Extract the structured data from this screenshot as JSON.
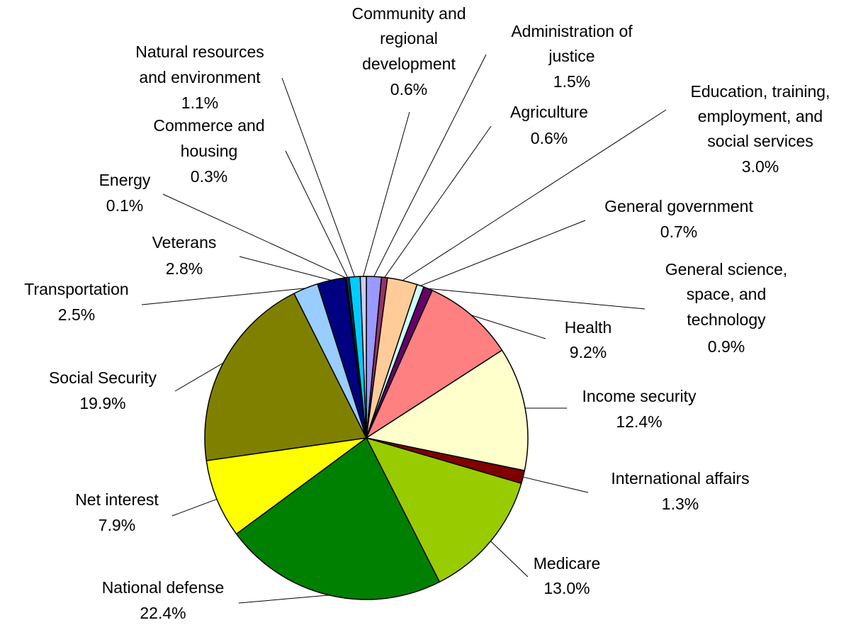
{
  "chart_data": {
    "type": "pie",
    "start_angle_deg": 0,
    "direction": "clockwise",
    "slices": [
      {
        "label": "Administration of justice",
        "value": 1.5,
        "display": "1.5%",
        "color": "#9999ff"
      },
      {
        "label": "Agriculture",
        "value": 0.6,
        "display": "0.6%",
        "color": "#993366"
      },
      {
        "label": "Education, training, employment, and social services",
        "value": 3.0,
        "display": "3.0%",
        "color": "#ffcc99"
      },
      {
        "label": "General government",
        "value": 0.7,
        "display": "0.7%",
        "color": "#ccffff"
      },
      {
        "label": "General science, space, and technology",
        "value": 0.9,
        "display": "0.9%",
        "color": "#660066"
      },
      {
        "label": "Health",
        "value": 9.2,
        "display": "9.2%",
        "color": "#ff8080"
      },
      {
        "label": "Income security",
        "value": 12.4,
        "display": "12.4%",
        "color": "#ffffcc"
      },
      {
        "label": "International affairs",
        "value": 1.3,
        "display": "1.3%",
        "color": "#800000"
      },
      {
        "label": "Medicare",
        "value": 13.0,
        "display": "13.0%",
        "color": "#99cc00"
      },
      {
        "label": "National defense",
        "value": 22.4,
        "display": "22.4%",
        "color": "#008000"
      },
      {
        "label": "Net interest",
        "value": 7.9,
        "display": "7.9%",
        "color": "#ffff00"
      },
      {
        "label": "Social Security",
        "value": 19.9,
        "display": "19.9%",
        "color": "#808000"
      },
      {
        "label": "Transportation",
        "value": 2.5,
        "display": "2.5%",
        "color": "#99ccff"
      },
      {
        "label": "Veterans",
        "value": 2.8,
        "display": "2.8%",
        "color": "#000080"
      },
      {
        "label": "Energy",
        "value": 0.1,
        "display": "0.1%",
        "color": "#333399"
      },
      {
        "label": "Commerce and housing",
        "value": 0.3,
        "display": "0.3%",
        "color": "#003366"
      },
      {
        "label": "Natural resources and environment",
        "value": 1.1,
        "display": "1.1%",
        "color": "#00ccff"
      },
      {
        "label": "Community and regional development",
        "value": 0.6,
        "display": "0.6%",
        "color": "#ccccff"
      }
    ]
  }
}
